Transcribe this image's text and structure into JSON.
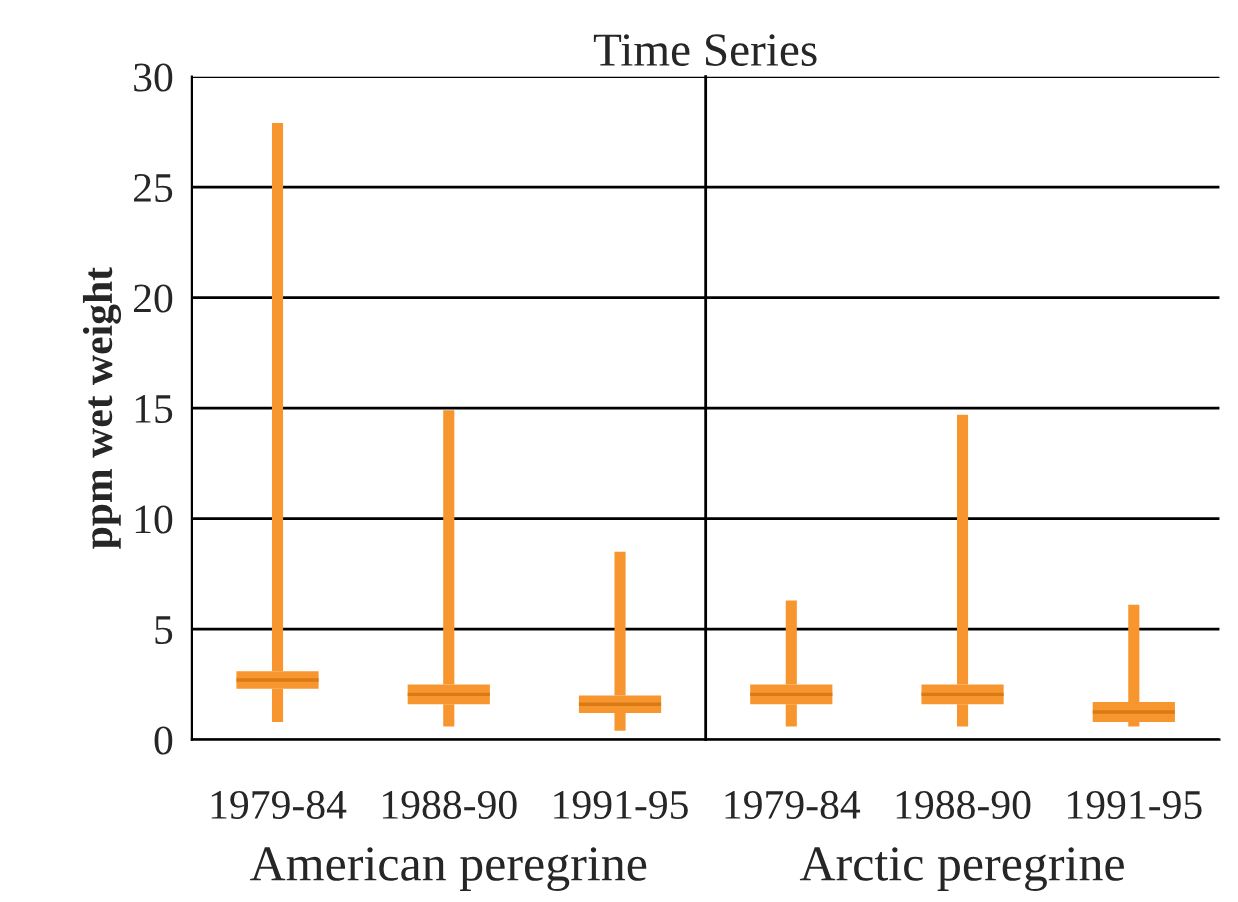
{
  "chart_data": {
    "type": "box",
    "title": "Time Series",
    "ylabel": "ppm wet weight",
    "categories": [
      "1979-84",
      "1988-90",
      "1991-95",
      "1979-84",
      "1988-90",
      "1991-95"
    ],
    "boxes": [
      {
        "low": 0.8,
        "q1": 2.3,
        "median": 2.7,
        "q3": 3.1,
        "high": 27.9
      },
      {
        "low": 0.6,
        "q1": 1.6,
        "median": 2.05,
        "q3": 2.5,
        "high": 14.9
      },
      {
        "low": 0.4,
        "q1": 1.2,
        "median": 1.6,
        "q3": 2.0,
        "high": 8.5
      },
      {
        "low": 0.6,
        "q1": 1.6,
        "median": 2.05,
        "q3": 2.5,
        "high": 6.3
      },
      {
        "low": 0.6,
        "q1": 1.6,
        "median": 2.05,
        "q3": 2.5,
        "high": 14.7
      },
      {
        "low": 0.6,
        "q1": 0.8,
        "median": 1.25,
        "q3": 1.7,
        "high": 6.1
      }
    ],
    "color": "#f7962f",
    "ylim": [
      0,
      30
    ],
    "yticks": [
      0,
      5,
      10,
      15,
      20,
      25,
      30
    ],
    "grid": "y",
    "annotations": [
      "American peregrine",
      "Arctic peregrine"
    ]
  }
}
